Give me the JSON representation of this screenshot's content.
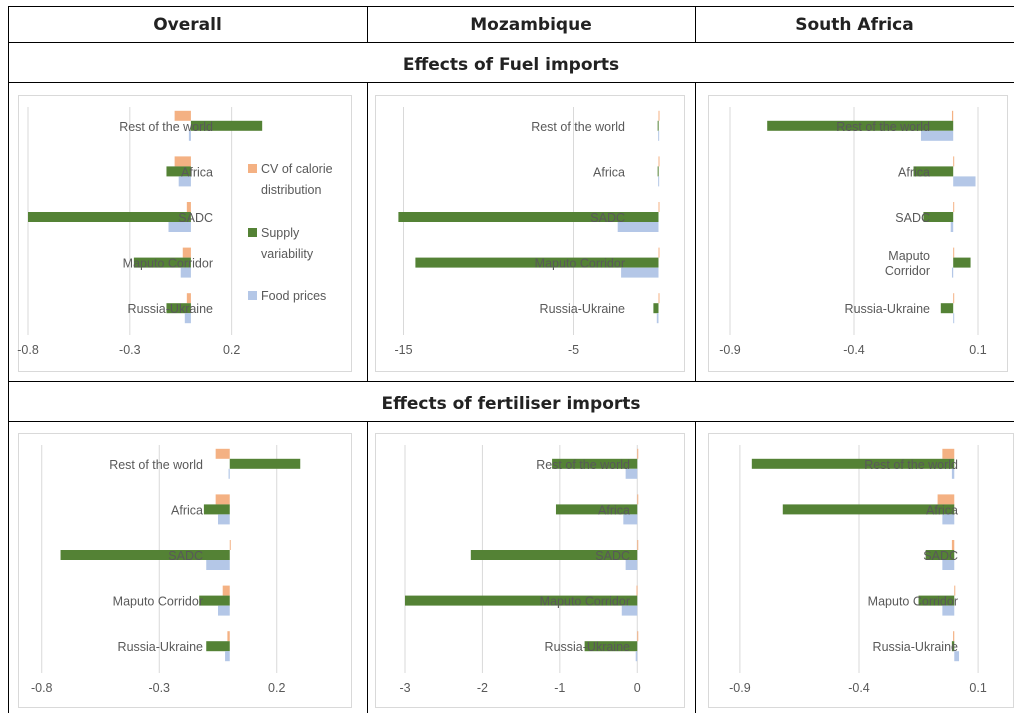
{
  "table": {
    "columns": [
      "Overall",
      "Mozambique",
      "South Africa"
    ],
    "sections": [
      "Effects of Fuel imports",
      "Effects of fertiliser imports"
    ]
  },
  "legend": [
    {
      "name": "CV of calorie distribution",
      "color": "#f4b183"
    },
    {
      "name": "Supply variability",
      "color": "#548235"
    },
    {
      "name": "Food prices",
      "color": "#b4c7e7"
    }
  ],
  "chart_data": [
    {
      "id": "fuel-overall",
      "type": "bar",
      "orientation": "horizontal",
      "section": "Effects of Fuel imports",
      "column": "Overall",
      "categories": [
        "Rest of the world",
        "Africa",
        "SADC",
        "Maputo Corridor",
        "Russia-Ukraine"
      ],
      "category_labels": [
        [
          "Rest of the world"
        ],
        [
          "Africa"
        ],
        [
          "SADC"
        ],
        [
          "Maputo Corridor"
        ],
        [
          "Russia-Ukraine"
        ]
      ],
      "xlim": [
        -0.8,
        0.3
      ],
      "ticks": [
        -0.8,
        -0.3,
        0.2
      ],
      "series": [
        {
          "name": "CV of calorie distribution",
          "color": "#f4b183",
          "values": [
            -0.08,
            -0.08,
            -0.02,
            -0.04,
            -0.02
          ]
        },
        {
          "name": "Supply variability",
          "color": "#548235",
          "values": [
            0.35,
            -0.12,
            -0.8,
            -0.28,
            -0.12
          ]
        },
        {
          "name": "Food prices",
          "color": "#b4c7e7",
          "values": [
            -0.01,
            -0.06,
            -0.11,
            -0.05,
            -0.03
          ]
        }
      ],
      "legend": true
    },
    {
      "id": "fuel-mozambique",
      "type": "bar",
      "orientation": "horizontal",
      "section": "Effects of Fuel imports",
      "column": "Mozambique",
      "categories": [
        "Rest of the world",
        "Africa",
        "SADC",
        "Maputo Corridor",
        "Russia-Ukraine"
      ],
      "category_labels": [
        [
          "Rest of the world"
        ],
        [
          "Africa"
        ],
        [
          "SADC"
        ],
        [
          "Maputo Corridor"
        ],
        [
          "Russia-Ukraine"
        ]
      ],
      "xlim": [
        -15.5,
        0.5
      ],
      "ticks": [
        -15,
        -5
      ],
      "series": [
        {
          "name": "CV of calorie distribution",
          "color": "#f4b183",
          "values": [
            0,
            0,
            0,
            0,
            0
          ]
        },
        {
          "name": "Supply variability",
          "color": "#548235",
          "values": [
            -0.05,
            -0.05,
            -15.3,
            -14.3,
            -0.3
          ]
        },
        {
          "name": "Food prices",
          "color": "#b4c7e7",
          "values": [
            -0.02,
            -0.02,
            -2.4,
            -2.2,
            -0.1
          ]
        }
      ],
      "legend": false
    },
    {
      "id": "fuel-south-africa",
      "type": "bar",
      "orientation": "horizontal",
      "section": "Effects of Fuel imports",
      "column": "South Africa",
      "categories": [
        "Rest of the world",
        "Africa",
        "SADC",
        "Maputo Corridor",
        "Russia-Ukraine"
      ],
      "category_labels": [
        [
          "Rest of the world"
        ],
        [
          "Africa"
        ],
        [
          "SADC"
        ],
        [
          "Maputo",
          "Corridor"
        ],
        [
          "Russia-Ukraine"
        ]
      ],
      "xlim": [
        -0.9,
        0.1
      ],
      "ticks": [
        -0.9,
        -0.4,
        0.1
      ],
      "series": [
        {
          "name": "CV of calorie distribution",
          "color": "#f4b183",
          "values": [
            -0.005,
            0,
            0,
            0,
            0
          ]
        },
        {
          "name": "Supply variability",
          "color": "#548235",
          "values": [
            -0.75,
            -0.16,
            -0.12,
            0.07,
            -0.05
          ]
        },
        {
          "name": "Food prices",
          "color": "#b4c7e7",
          "values": [
            -0.13,
            0.09,
            -0.01,
            -0.005,
            0
          ]
        }
      ],
      "legend": false
    },
    {
      "id": "fert-overall",
      "type": "bar",
      "orientation": "horizontal",
      "section": "Effects of fertiliser imports",
      "column": "Overall",
      "categories": [
        "Rest of the world",
        "Africa",
        "SADC",
        "Maputo Corridor",
        "Russia-Ukraine"
      ],
      "category_labels": [
        [
          "Rest of the world"
        ],
        [
          "Africa"
        ],
        [
          "SADC"
        ],
        [
          "Maputo Corridor"
        ],
        [
          "Russia-Ukraine"
        ]
      ],
      "xlim": [
        -0.85,
        0.35
      ],
      "ticks": [
        -0.8,
        -0.3,
        0.2
      ],
      "series": [
        {
          "name": "CV of calorie distribution",
          "color": "#f4b183",
          "values": [
            -0.06,
            -0.06,
            0,
            -0.03,
            -0.01
          ]
        },
        {
          "name": "Supply variability",
          "color": "#548235",
          "values": [
            0.3,
            -0.11,
            -0.72,
            -0.13,
            -0.1
          ]
        },
        {
          "name": "Food prices",
          "color": "#b4c7e7",
          "values": [
            -0.005,
            -0.05,
            -0.1,
            -0.05,
            -0.02
          ]
        }
      ],
      "legend": false
    },
    {
      "id": "fert-mozambique",
      "type": "bar",
      "orientation": "horizontal",
      "section": "Effects of fertiliser imports",
      "column": "Mozambique",
      "categories": [
        "Rest of the world",
        "Africa",
        "SADC",
        "Maputo Corridor",
        "Russia-Ukraine"
      ],
      "category_labels": [
        [
          "Rest of the world"
        ],
        [
          "Africa"
        ],
        [
          "SADC"
        ],
        [
          "Maputo Corridor"
        ],
        [
          "Russia-Ukraine"
        ]
      ],
      "xlim": [
        -3.0,
        0.1
      ],
      "ticks": [
        -3,
        -2,
        -1,
        0
      ],
      "series": [
        {
          "name": "CV of calorie distribution",
          "color": "#f4b183",
          "values": [
            0,
            0,
            0,
            -0.01,
            0
          ]
        },
        {
          "name": "Supply variability",
          "color": "#548235",
          "values": [
            -1.1,
            -1.05,
            -2.15,
            -3.0,
            -0.68
          ]
        },
        {
          "name": "Food prices",
          "color": "#b4c7e7",
          "values": [
            -0.15,
            -0.18,
            -0.15,
            -0.2,
            -0.02
          ]
        }
      ],
      "legend": false
    },
    {
      "id": "fert-south-africa",
      "type": "bar",
      "orientation": "horizontal",
      "section": "Effects of fertiliser imports",
      "column": "South Africa",
      "categories": [
        "Rest of the world",
        "Africa",
        "SADC",
        "Maputo Corridor",
        "Russia-Ukraine"
      ],
      "category_labels": [
        [
          "Rest of the world"
        ],
        [
          "Africa"
        ],
        [
          "SADC"
        ],
        [
          "Maputo Corridor"
        ],
        [
          "Russia-Ukraine"
        ]
      ],
      "xlim": [
        -0.95,
        0.15
      ],
      "ticks": [
        -0.9,
        -0.4,
        0.1
      ],
      "series": [
        {
          "name": "CV of calorie distribution",
          "color": "#f4b183",
          "values": [
            -0.05,
            -0.07,
            -0.01,
            0,
            -0.005
          ]
        },
        {
          "name": "Supply variability",
          "color": "#548235",
          "values": [
            -0.85,
            -0.72,
            -0.12,
            -0.15,
            -0.01
          ]
        },
        {
          "name": "Food prices",
          "color": "#b4c7e7",
          "values": [
            -0.01,
            -0.05,
            -0.05,
            -0.05,
            0.02
          ]
        }
      ],
      "legend": false
    }
  ]
}
